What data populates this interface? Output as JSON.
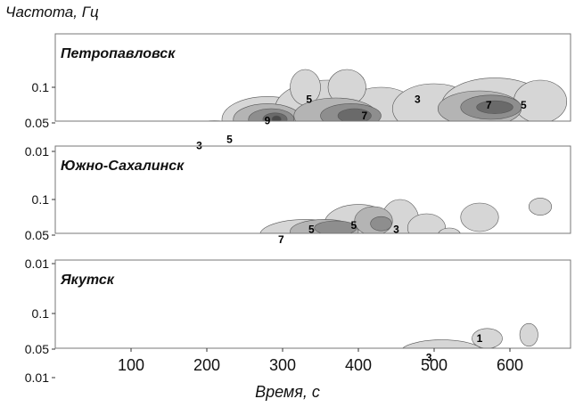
{
  "figure": {
    "ylabel": "Частота, Гц",
    "xlabel": "Время, с"
  },
  "chart_data": [
    {
      "type": "heatmap",
      "title": "Петропавловск",
      "xlim": [
        0,
        680
      ],
      "ylim": [
        0,
        0.12
      ],
      "yticks": [
        0.01,
        0.05,
        0.1
      ],
      "ytick_labels": [
        "0.01",
        "0.05",
        "0.1"
      ],
      "contour_levels": [
        1,
        3,
        5,
        7,
        9
      ],
      "contour_labels": [
        {
          "text": "3",
          "x": 190,
          "y": 0.018
        },
        {
          "text": "5",
          "x": 230,
          "y": 0.027
        },
        {
          "text": "9",
          "x": 280,
          "y": 0.053
        },
        {
          "text": "5",
          "x": 335,
          "y": 0.083
        },
        {
          "text": "7",
          "x": 408,
          "y": 0.06
        },
        {
          "text": "3",
          "x": 478,
          "y": 0.083
        },
        {
          "text": "7",
          "x": 572,
          "y": 0.075
        },
        {
          "text": "5",
          "x": 618,
          "y": 0.075
        }
      ]
    },
    {
      "type": "heatmap",
      "title": "Южно-Сахалинск",
      "xlim": [
        0,
        680
      ],
      "ylim": [
        0,
        0.12
      ],
      "yticks": [
        0.01,
        0.05,
        0.1
      ],
      "ytick_labels": [
        "0.01",
        "0.05",
        "0.1"
      ],
      "contour_levels": [
        1,
        3,
        5,
        7
      ],
      "contour_labels": [
        {
          "text": "7",
          "x": 298,
          "y": 0.044
        },
        {
          "text": "5",
          "x": 338,
          "y": 0.058
        },
        {
          "text": "5",
          "x": 394,
          "y": 0.064
        },
        {
          "text": "3",
          "x": 450,
          "y": 0.058
        }
      ]
    },
    {
      "type": "heatmap",
      "title": "Якутск",
      "xlim": [
        0,
        680
      ],
      "ylim": [
        0,
        0.12
      ],
      "yticks": [
        0.01,
        0.05,
        0.1
      ],
      "ytick_labels": [
        "0.01",
        "0.05",
        "0.1"
      ],
      "contour_levels": [
        1,
        3
      ],
      "contour_labels": [
        {
          "text": "1",
          "x": 560,
          "y": 0.065
        },
        {
          "text": "3",
          "x": 493,
          "y": 0.038
        }
      ]
    }
  ],
  "xaxis": {
    "ticks": [
      100,
      200,
      300,
      400,
      500,
      600
    ],
    "tick_labels": [
      "100",
      "200",
      "300",
      "400",
      "500",
      "600"
    ]
  }
}
